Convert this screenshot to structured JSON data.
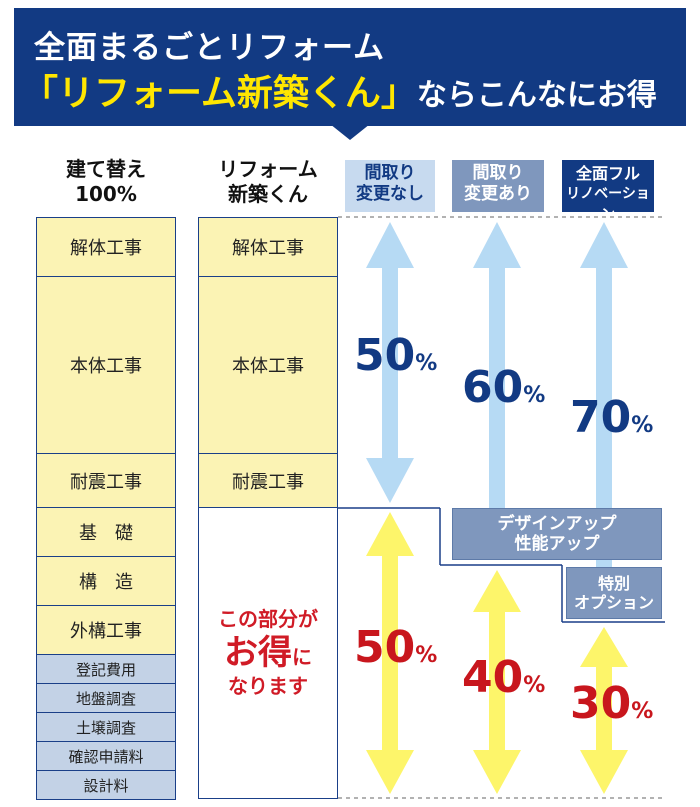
{
  "header": {
    "line1": "全面まるごとリフォーム",
    "line2_highlight": "「リフォーム新築くん」",
    "line2_rest": "ならこんなにお得"
  },
  "columns": {
    "rebuild": {
      "line1": "建て替え",
      "line2": "100%"
    },
    "reform": {
      "line1": "リフォーム",
      "line2": "新築くん"
    }
  },
  "tags": [
    {
      "line1": "間取り",
      "line2": "変更なし"
    },
    {
      "line1": "間取り",
      "line2": "変更あり"
    },
    {
      "line1": "全面フル",
      "line2": "リノベーション"
    }
  ],
  "rebuild_items": [
    "解体工事",
    "本体工事",
    "耐震工事",
    "基　礎",
    "構　造",
    "外構工事",
    "登記費用",
    "地盤調査",
    "土壌調査",
    "確認申請料",
    "設計料"
  ],
  "reform_items": [
    "解体工事",
    "本体工事",
    "耐震工事"
  ],
  "savings": {
    "line1": "この部分が",
    "line2_big": "お得",
    "line2_small": "に",
    "line3": "なります"
  },
  "cost_percentages": [
    {
      "value": "50",
      "unit": "%"
    },
    {
      "value": "60",
      "unit": "%"
    },
    {
      "value": "70",
      "unit": "%"
    }
  ],
  "saving_percentages": [
    {
      "value": "50",
      "unit": "%"
    },
    {
      "value": "40",
      "unit": "%"
    },
    {
      "value": "30",
      "unit": "%"
    }
  ],
  "design_up": {
    "line1": "デザインアップ",
    "line2": "性能アップ"
  },
  "special_option": {
    "line1": "特別",
    "line2": "オプション"
  },
  "colors": {
    "navy": "#123a83",
    "yellow_text": "#ffe600",
    "cell_yellow": "#fbf3b4",
    "cell_blue": "#c3d2e6",
    "arrow_blue": "#b6daf4",
    "arrow_yellow": "#fdf56a",
    "red": "#c8161d"
  }
}
